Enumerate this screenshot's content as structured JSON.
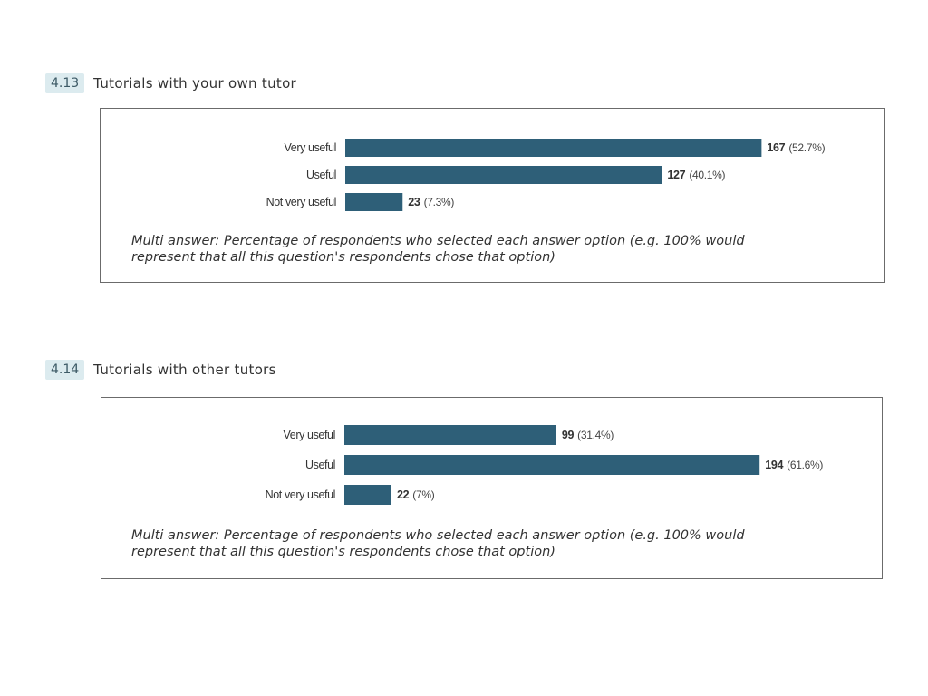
{
  "questions": [
    {
      "number": "4.13",
      "title": "Tutorials with your own tutor",
      "note_line1": "Multi answer: Percentage of respondents who selected each answer option (e.g. 100% would",
      "note_line2": "represent that all this question's respondents chose that option)"
    },
    {
      "number": "4.14",
      "title": "Tutorials with other tutors",
      "note_line1": "Multi answer: Percentage of respondents who selected each answer option (e.g. 100% would",
      "note_line2": "represent that all this question's respondents chose that option)"
    }
  ],
  "colors": {
    "bar": "#2e5f78"
  },
  "chart_data": [
    {
      "type": "bar",
      "orientation": "horizontal",
      "categories": [
        "Very useful",
        "Useful",
        "Not very useful"
      ],
      "values": [
        167,
        127,
        23
      ],
      "percent_labels": [
        "(52.7%)",
        "(40.1%)",
        "(7.3%)"
      ],
      "title": "Tutorials with your own tutor",
      "xlabel": "",
      "ylabel": "",
      "grid": false
    },
    {
      "type": "bar",
      "orientation": "horizontal",
      "categories": [
        "Very useful",
        "Useful",
        "Not very useful"
      ],
      "values": [
        99,
        194,
        22
      ],
      "percent_labels": [
        "(31.4%)",
        "(61.6%)",
        "(7%)"
      ],
      "title": "Tutorials with other tutors",
      "xlabel": "",
      "ylabel": "",
      "grid": false
    }
  ]
}
